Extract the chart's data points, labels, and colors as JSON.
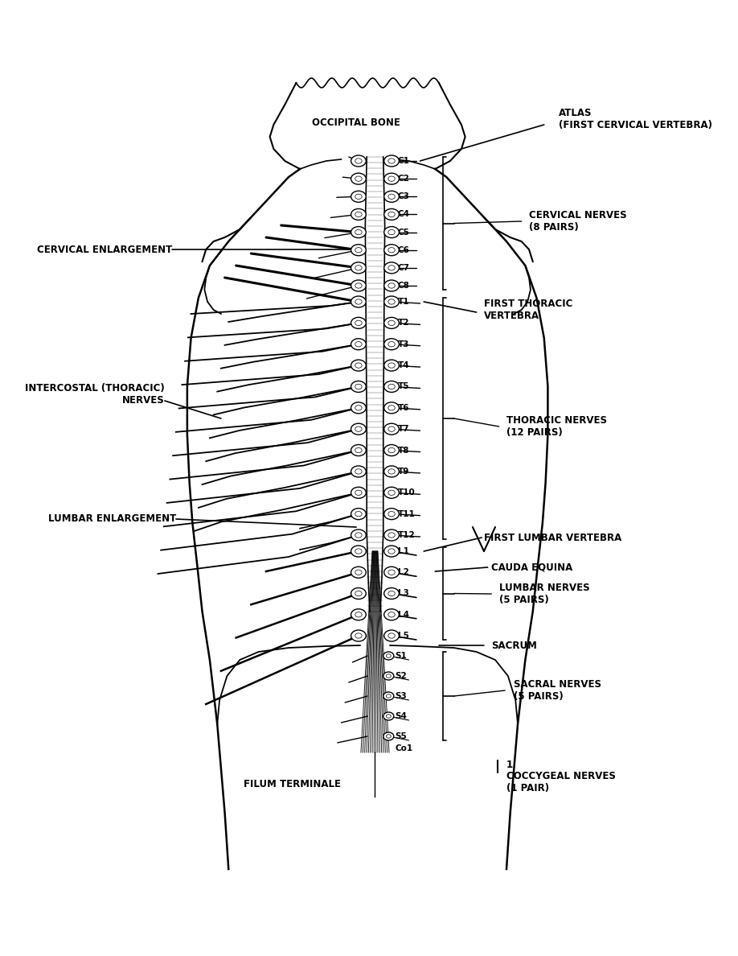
{
  "bg_color": "#ffffff",
  "labels": {
    "occipital_bone": "OCCIPITAL BONE",
    "atlas": "ATLAS\n(FIRST CERVICAL VERTEBRA)",
    "cervical_nerves": "CERVICAL NERVES\n(8 PAIRS)",
    "cervical_enlargement": "CERVICAL ENLARGEMENT",
    "first_thoracic": "FIRST THORACIC\nVERTEBRA",
    "intercostal": "INTERCOSTAL (THORACIC)\nNERVES",
    "thoracic_nerves": "THORACIC NERVES\n(12 PAIRS)",
    "lumbar_enlargement": "LUMBAR ENLARGEMENT",
    "first_lumbar": "FIRST LUMBAR VERTEBRA",
    "cauda_equina": "CAUDA EQUINA",
    "lumbar_nerves": "LUMBAR NERVES\n(5 PAIRS)",
    "sacrum": "SACRUM",
    "sacral_nerves": "SACRAL NERVES\n(5 PAIRS)",
    "filum_terminale": "FILUM TERMINALE",
    "coccygeal": "1\nCOCCYGEAL NERVES\n(1 PAIR)"
  },
  "vertebrae_labels": [
    "C1",
    "C2",
    "C3",
    "C4",
    "C5",
    "C6",
    "C7",
    "C8",
    "T1",
    "T2",
    "T3",
    "T4",
    "T5",
    "T6",
    "T7",
    "T8",
    "T9",
    "T10",
    "T11",
    "T12",
    "L1",
    "L2",
    "L3",
    "L4",
    "L5",
    "S1",
    "S2",
    "S3",
    "S4",
    "S5",
    "Co1"
  ]
}
